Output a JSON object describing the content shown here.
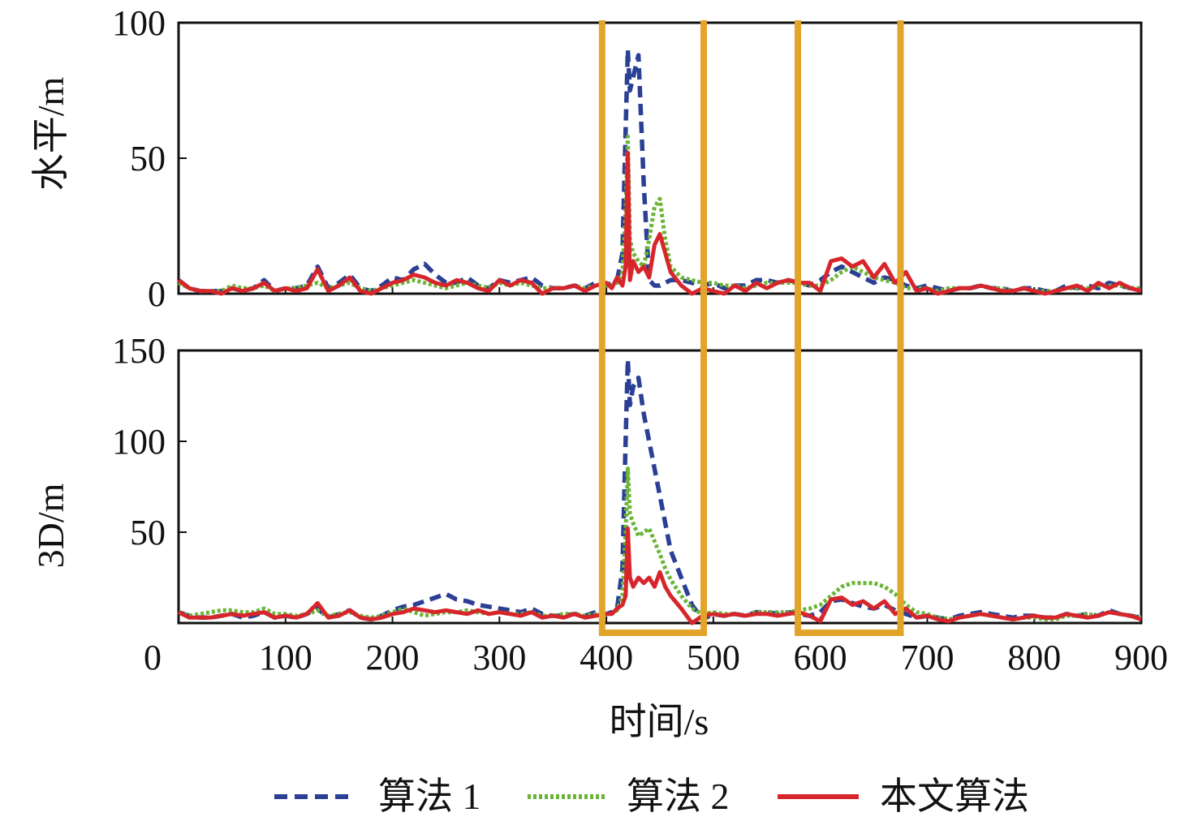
{
  "chart_data": [
    {
      "type": "line",
      "ylabel": "水平/m",
      "xlim": [
        0,
        900
      ],
      "ylim": [
        0,
        100
      ],
      "yticks": [
        "0",
        "50",
        "100"
      ],
      "ytick_values": [
        0,
        50,
        100
      ],
      "x": [
        0,
        10,
        20,
        30,
        40,
        50,
        60,
        70,
        80,
        90,
        100,
        110,
        120,
        130,
        140,
        150,
        160,
        170,
        180,
        190,
        200,
        210,
        220,
        230,
        240,
        250,
        260,
        270,
        280,
        290,
        300,
        310,
        320,
        330,
        340,
        350,
        360,
        370,
        380,
        390,
        400,
        405,
        410,
        415,
        418,
        420,
        422,
        425,
        430,
        435,
        440,
        445,
        450,
        455,
        460,
        470,
        480,
        490,
        500,
        510,
        520,
        530,
        540,
        550,
        560,
        570,
        580,
        590,
        600,
        610,
        620,
        630,
        640,
        650,
        660,
        670,
        680,
        690,
        700,
        710,
        720,
        730,
        740,
        750,
        760,
        770,
        780,
        790,
        800,
        810,
        820,
        830,
        840,
        850,
        860,
        870,
        880,
        890,
        900
      ],
      "series": [
        {
          "name": "算法 1",
          "values": [
            5,
            2,
            1,
            1,
            1,
            2,
            1,
            2,
            5,
            1,
            2,
            2,
            3,
            10,
            2,
            4,
            7,
            2,
            1,
            3,
            6,
            5,
            9,
            11,
            7,
            4,
            4,
            6,
            3,
            2,
            5,
            4,
            5,
            6,
            3,
            2,
            2,
            3,
            2,
            4,
            3,
            4,
            5,
            15,
            60,
            90,
            75,
            80,
            88,
            40,
            5,
            3,
            3,
            4,
            5,
            5,
            4,
            3,
            4,
            2,
            3,
            3,
            5,
            5,
            4,
            5,
            4,
            3,
            5,
            8,
            10,
            8,
            6,
            4,
            6,
            5,
            3,
            2,
            3,
            2,
            1,
            2,
            2,
            3,
            2,
            2,
            1,
            2,
            2,
            1,
            1,
            3,
            2,
            3,
            2,
            4,
            3,
            2,
            2
          ]
        },
        {
          "name": "算法 2",
          "values": [
            4,
            2,
            1,
            1,
            1,
            3,
            2,
            2,
            3,
            1,
            2,
            2,
            3,
            4,
            2,
            3,
            4,
            2,
            1,
            2,
            3,
            4,
            5,
            4,
            3,
            2,
            3,
            4,
            3,
            2,
            4,
            3,
            4,
            3,
            2,
            2,
            2,
            3,
            2,
            3,
            3,
            3,
            4,
            8,
            30,
            58,
            20,
            15,
            12,
            10,
            20,
            32,
            35,
            20,
            10,
            6,
            5,
            4,
            4,
            3,
            3,
            2,
            3,
            4,
            4,
            4,
            4,
            3,
            3,
            5,
            8,
            10,
            8,
            6,
            5,
            4,
            2,
            2,
            2,
            1,
            2,
            2,
            2,
            3,
            2,
            2,
            1,
            2,
            1,
            1,
            1,
            2,
            2,
            2,
            3,
            3,
            3,
            2,
            2
          ]
        },
        {
          "name": "本文算法",
          "values": [
            5,
            2,
            1,
            1,
            0,
            2,
            1,
            2,
            4,
            1,
            2,
            1,
            2,
            9,
            1,
            3,
            6,
            1,
            0,
            2,
            4,
            5,
            7,
            6,
            4,
            3,
            5,
            4,
            2,
            1,
            5,
            3,
            5,
            4,
            0,
            2,
            2,
            3,
            1,
            3,
            4,
            2,
            6,
            3,
            10,
            52,
            5,
            12,
            8,
            10,
            6,
            18,
            22,
            15,
            8,
            3,
            0,
            2,
            1,
            0,
            3,
            1,
            4,
            2,
            4,
            5,
            4,
            4,
            1,
            12,
            13,
            10,
            12,
            6,
            11,
            4,
            8,
            1,
            2,
            0,
            1,
            2,
            2,
            3,
            2,
            1,
            1,
            2,
            1,
            0,
            1,
            2,
            3,
            1,
            4,
            2,
            4,
            2,
            1
          ]
        }
      ]
    },
    {
      "type": "line",
      "xlabel": "时间/s",
      "ylabel": "3D/m",
      "xlim": [
        0,
        900
      ],
      "ylim": [
        0,
        150
      ],
      "yticks": [
        "50",
        "100",
        "150"
      ],
      "ytick_values": [
        50,
        100,
        150
      ],
      "xticks": [
        "0",
        "100",
        "200",
        "300",
        "400",
        "500",
        "600",
        "700",
        "800",
        "900"
      ],
      "xtick_values": [
        0,
        100,
        200,
        300,
        400,
        500,
        600,
        700,
        800,
        900
      ],
      "x": [
        0,
        10,
        20,
        30,
        40,
        50,
        60,
        70,
        80,
        90,
        100,
        110,
        120,
        130,
        140,
        150,
        160,
        170,
        180,
        190,
        200,
        210,
        220,
        230,
        240,
        250,
        260,
        270,
        280,
        290,
        300,
        310,
        320,
        330,
        340,
        350,
        360,
        370,
        380,
        390,
        400,
        405,
        410,
        415,
        418,
        420,
        422,
        425,
        430,
        435,
        440,
        445,
        450,
        455,
        460,
        470,
        480,
        490,
        500,
        510,
        520,
        530,
        540,
        550,
        560,
        570,
        580,
        590,
        600,
        610,
        620,
        630,
        640,
        650,
        660,
        670,
        680,
        690,
        700,
        710,
        720,
        730,
        740,
        750,
        760,
        770,
        780,
        790,
        800,
        810,
        820,
        830,
        840,
        850,
        860,
        870,
        880,
        890,
        900
      ],
      "series": [
        {
          "name": "算法 1",
          "values": [
            6,
            4,
            3,
            3,
            4,
            5,
            3,
            4,
            6,
            3,
            4,
            3,
            5,
            8,
            3,
            5,
            7,
            3,
            2,
            4,
            7,
            9,
            10,
            12,
            14,
            16,
            13,
            12,
            10,
            9,
            8,
            7,
            6,
            8,
            5,
            4,
            4,
            5,
            4,
            6,
            5,
            6,
            8,
            30,
            100,
            145,
            120,
            130,
            135,
            115,
            100,
            85,
            70,
            55,
            40,
            25,
            10,
            2,
            5,
            4,
            5,
            4,
            6,
            6,
            5,
            6,
            5,
            4,
            6,
            12,
            13,
            11,
            9,
            8,
            10,
            7,
            5,
            3,
            4,
            3,
            2,
            4,
            5,
            6,
            5,
            4,
            3,
            4,
            4,
            3,
            3,
            5,
            4,
            5,
            4,
            7,
            5,
            4,
            3
          ]
        },
        {
          "name": "算法 2",
          "values": [
            6,
            4,
            5,
            6,
            7,
            7,
            6,
            6,
            8,
            5,
            5,
            4,
            5,
            7,
            4,
            5,
            6,
            4,
            3,
            4,
            6,
            8,
            6,
            4,
            5,
            6,
            6,
            7,
            6,
            5,
            6,
            5,
            5,
            6,
            4,
            4,
            5,
            5,
            4,
            5,
            5,
            5,
            7,
            15,
            50,
            85,
            60,
            55,
            48,
            50,
            52,
            45,
            38,
            30,
            24,
            15,
            8,
            5,
            6,
            5,
            5,
            4,
            6,
            6,
            6,
            6,
            7,
            8,
            10,
            15,
            20,
            22,
            22,
            22,
            20,
            16,
            10,
            6,
            5,
            3,
            2,
            3,
            4,
            5,
            4,
            3,
            2,
            3,
            3,
            2,
            2,
            4,
            4,
            5,
            4,
            6,
            5,
            4,
            3
          ]
        },
        {
          "name": "本文算法",
          "values": [
            6,
            3,
            3,
            3,
            4,
            5,
            4,
            5,
            6,
            3,
            4,
            3,
            5,
            11,
            3,
            4,
            7,
            3,
            2,
            3,
            5,
            6,
            8,
            7,
            6,
            7,
            6,
            5,
            7,
            5,
            6,
            5,
            4,
            6,
            3,
            4,
            3,
            5,
            3,
            4,
            5,
            5,
            8,
            10,
            15,
            52,
            25,
            20,
            25,
            22,
            25,
            20,
            28,
            20,
            15,
            8,
            0,
            4,
            5,
            4,
            5,
            4,
            5,
            5,
            4,
            5,
            6,
            4,
            1,
            13,
            14,
            10,
            12,
            8,
            12,
            5,
            8,
            3,
            4,
            2,
            1,
            3,
            4,
            5,
            4,
            3,
            2,
            3,
            4,
            3,
            3,
            5,
            4,
            3,
            4,
            6,
            5,
            4,
            2
          ]
        }
      ]
    }
  ],
  "highlight_windows": [
    [
      396,
      491
    ],
    [
      579,
      675
    ]
  ],
  "legend": {
    "placement": "bottom",
    "items": [
      {
        "label": "算法 1",
        "color": "#2b3f95",
        "style": "dashed"
      },
      {
        "label": "算法 2",
        "color": "#6ab536",
        "style": "dotted"
      },
      {
        "label": "本文算法",
        "color": "#d7262b",
        "style": "solid"
      }
    ]
  },
  "colors": {
    "highlight": "#e3a42c",
    "axis": "#111111"
  }
}
